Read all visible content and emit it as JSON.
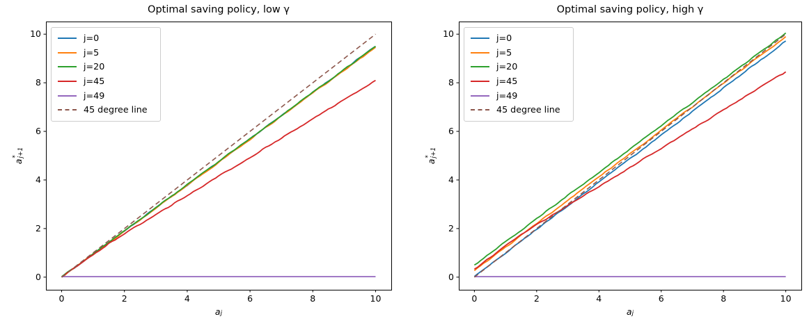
{
  "figure": {
    "background": "#ffffff",
    "text_color": "#000000",
    "axis_color": "#000000",
    "legend_border_color": "#cccccc"
  },
  "chart_data": [
    {
      "type": "line",
      "title": "Optimal saving policy, low γ",
      "xlabel_base": "a",
      "xlabel_sub": "j",
      "ylabel_base": "a",
      "ylabel_sup": "*",
      "ylabel_sub": "j+1",
      "xlim": [
        -0.5,
        10.5
      ],
      "ylim": [
        -0.52,
        10.52
      ],
      "xticks": [
        0,
        2,
        4,
        6,
        8,
        10
      ],
      "yticks": [
        0,
        2,
        4,
        6,
        8,
        10
      ],
      "grid": false,
      "legend_position": "upper left",
      "series": [
        {
          "name": "j=0",
          "color": "#1f77b4",
          "noisy": true,
          "dashed": false,
          "points": [
            [
              0,
              0.0
            ],
            [
              10,
              9.5
            ]
          ]
        },
        {
          "name": "j=5",
          "color": "#ff7f0e",
          "noisy": true,
          "dashed": false,
          "points": [
            [
              0,
              0.0
            ],
            [
              10,
              9.46
            ]
          ]
        },
        {
          "name": "j=20",
          "color": "#2ca02c",
          "noisy": true,
          "dashed": false,
          "points": [
            [
              0,
              0.02
            ],
            [
              10,
              9.5
            ]
          ]
        },
        {
          "name": "j=45",
          "color": "#d62728",
          "noisy": true,
          "dashed": false,
          "points": [
            [
              0,
              0.0
            ],
            [
              1.5,
              1.38
            ],
            [
              10,
              8.1
            ]
          ]
        },
        {
          "name": "j=49",
          "color": "#9467bd",
          "noisy": false,
          "dashed": false,
          "points": [
            [
              0,
              0.02
            ],
            [
              10,
              0.02
            ]
          ]
        },
        {
          "name": "45 degree line",
          "color": "#8c564b",
          "noisy": false,
          "dashed": true,
          "points": [
            [
              0,
              0.0
            ],
            [
              10,
              10.0
            ]
          ]
        }
      ]
    },
    {
      "type": "line",
      "title": "Optimal saving policy, high γ",
      "xlabel_base": "a",
      "xlabel_sub": "j",
      "ylabel_base": "a",
      "ylabel_sup": "*",
      "ylabel_sub": "j+1",
      "xlim": [
        -0.5,
        10.5
      ],
      "ylim": [
        -0.52,
        10.52
      ],
      "xticks": [
        0,
        2,
        4,
        6,
        8,
        10
      ],
      "yticks": [
        0,
        2,
        4,
        6,
        8,
        10
      ],
      "grid": false,
      "legend_position": "upper left",
      "series": [
        {
          "name": "j=0",
          "color": "#1f77b4",
          "noisy": true,
          "dashed": false,
          "points": [
            [
              0,
              0.03
            ],
            [
              10,
              9.72
            ]
          ]
        },
        {
          "name": "j=5",
          "color": "#ff7f0e",
          "noisy": true,
          "dashed": false,
          "points": [
            [
              0,
              0.27
            ],
            [
              10,
              9.9
            ]
          ]
        },
        {
          "name": "j=20",
          "color": "#2ca02c",
          "noisy": true,
          "dashed": false,
          "points": [
            [
              0,
              0.5
            ],
            [
              10,
              10.05
            ]
          ]
        },
        {
          "name": "j=45",
          "color": "#d62728",
          "noisy": true,
          "dashed": false,
          "points": [
            [
              0,
              0.33
            ],
            [
              1.5,
              1.76
            ],
            [
              10,
              8.45
            ]
          ]
        },
        {
          "name": "j=49",
          "color": "#9467bd",
          "noisy": false,
          "dashed": false,
          "points": [
            [
              0,
              0.02
            ],
            [
              10,
              0.02
            ]
          ]
        },
        {
          "name": "45 degree line",
          "color": "#8c564b",
          "noisy": false,
          "dashed": true,
          "points": [
            [
              0,
              0.0
            ],
            [
              10,
              10.0
            ]
          ]
        }
      ]
    }
  ]
}
